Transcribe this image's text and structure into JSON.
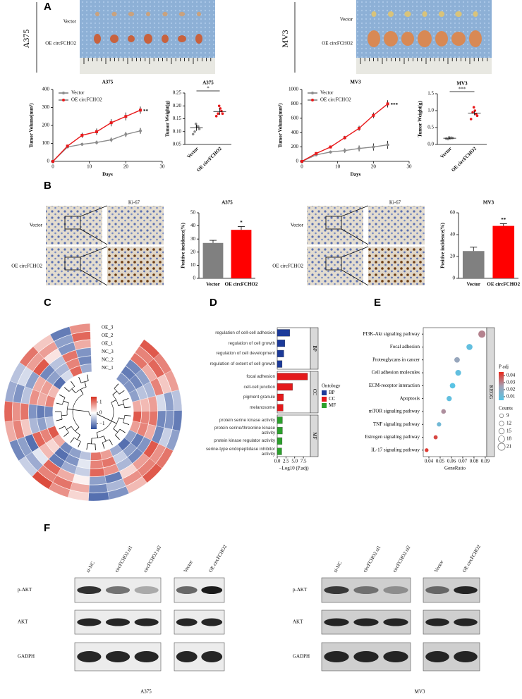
{
  "panel_labels": [
    "A",
    "B",
    "C",
    "D",
    "E",
    "F"
  ],
  "tumor_photos": [
    {
      "cell_line": "A375",
      "groups": [
        "Vector",
        "OE circFCHO2"
      ]
    },
    {
      "cell_line": "MV3",
      "groups": [
        "Vector",
        "OE circFCHO2"
      ]
    }
  ],
  "ihc": [
    {
      "stain": "Ki-67",
      "groups": [
        "Vector",
        "OE circFCHO2"
      ]
    },
    {
      "stain": "Ki-67",
      "groups": [
        "Vector",
        "OE circFCHO2"
      ]
    }
  ],
  "chart_data": [
    {
      "type": "line",
      "title": "A375",
      "x": [
        0,
        4,
        8,
        12,
        16,
        20,
        24
      ],
      "xlim": [
        0,
        30
      ],
      "xticks": [
        0,
        10,
        20,
        30
      ],
      "ylim": [
        0,
        400
      ],
      "yticks": [
        0,
        100,
        200,
        300,
        400
      ],
      "x_label": "Days",
      "y_label": "Tumor Volume(mm³)",
      "series": [
        {
          "name": "Vector",
          "color": "#8c8c8c",
          "values": [
            0,
            80,
            95,
            105,
            120,
            150,
            170
          ],
          "errors": [
            0,
            6,
            8,
            10,
            12,
            14,
            16
          ]
        },
        {
          "name": "OE circFCHO2",
          "color": "#e8191b",
          "values": [
            0,
            85,
            145,
            165,
            215,
            250,
            285
          ],
          "errors": [
            0,
            8,
            14,
            18,
            20,
            22,
            20
          ]
        }
      ],
      "annotation": "**"
    },
    {
      "type": "dotplot",
      "title": "A375",
      "categories": [
        "Vector",
        "OE circFCHO2"
      ],
      "colors": [
        "#8c8c8c",
        "#e8191b"
      ],
      "points": [
        [
          0.09,
          0.11,
          0.12,
          0.12,
          0.13,
          0.1
        ],
        [
          0.16,
          0.17,
          0.18,
          0.19,
          0.2,
          0.17
        ]
      ],
      "means": [
        0.115,
        0.178
      ],
      "errors": [
        0.012,
        0.013
      ],
      "ylim": [
        0.05,
        0.25
      ],
      "yticks": [
        0.05,
        {
          "value": 0.1,
          "label": "0.10"
        },
        0.15,
        {
          "value": 0.2,
          "label": "0.20"
        },
        0.25
      ],
      "y_label": "Tumor Weight(g)",
      "annotation": "*"
    },
    {
      "type": "line",
      "title": "MV3",
      "x": [
        0,
        4,
        8,
        12,
        16,
        20,
        24
      ],
      "xlim": [
        0,
        30
      ],
      "xticks": [
        0,
        10,
        20,
        30
      ],
      "ylim": [
        0,
        1000
      ],
      "yticks": [
        0,
        200,
        400,
        600,
        800,
        1000
      ],
      "x_label": "Days",
      "y_label": "Tumor Volume(mm³)",
      "series": [
        {
          "name": "Vector",
          "color": "#8c8c8c",
          "values": [
            0,
            90,
            130,
            150,
            180,
            200,
            230
          ],
          "errors": [
            0,
            10,
            20,
            30,
            40,
            50,
            55
          ]
        },
        {
          "name": "OE circFCHO2",
          "color": "#e8191b",
          "values": [
            0,
            110,
            200,
            330,
            460,
            640,
            800
          ],
          "errors": [
            0,
            15,
            20,
            25,
            35,
            40,
            50
          ]
        }
      ],
      "annotation": "***"
    },
    {
      "type": "dotplot",
      "title": "MV3",
      "categories": [
        "Vector",
        "OE circFCHO2"
      ],
      "colors": [
        "#8c8c8c",
        "#e8191b"
      ],
      "points": [
        [
          0.17,
          0.19,
          0.2,
          0.18,
          0.21,
          0.16
        ],
        [
          0.75,
          0.85,
          0.9,
          1.0,
          1.1,
          0.95
        ]
      ],
      "means": [
        0.185,
        0.925
      ],
      "errors": [
        0.02,
        0.06
      ],
      "ylim": [
        0,
        1.5
      ],
      "yticks": [
        {
          "value": 0,
          "label": "0.0"
        },
        0.5,
        {
          "value": 1,
          "label": "1.0"
        },
        1.5
      ],
      "y_label": "Tumor Weight(g)",
      "annotation": "***"
    },
    {
      "type": "bar",
      "title": "A375",
      "categories": [
        "Vector",
        "OE circFCHO2"
      ],
      "colors": [
        "#808080",
        "#ff0000"
      ],
      "values": [
        27,
        37
      ],
      "errors": [
        2,
        2.5
      ],
      "ylim": [
        0,
        50
      ],
      "yticks": [
        0,
        10,
        20,
        30,
        40,
        50
      ],
      "y_label": "Positive incidence(%)",
      "annotation": "*"
    },
    {
      "type": "bar",
      "title": "MV3",
      "categories": [
        "Vector",
        "OE circFCHO2"
      ],
      "colors": [
        "#808080",
        "#ff0000"
      ],
      "values": [
        25,
        48
      ],
      "errors": [
        3.5,
        2
      ],
      "ylim": [
        0,
        60
      ],
      "yticks": [
        0,
        20,
        40,
        60
      ],
      "y_label": "Positive incidence(%)",
      "annotation": "**"
    },
    {
      "type": "circular_heatmap",
      "rows": [
        "OE_3",
        "OE_2",
        "OE_1",
        "NC_3",
        "NC_2",
        "NC_1"
      ],
      "values": [
        [
          1.2,
          0.9,
          0.7,
          -0.5,
          -1.1,
          -0.8,
          1.0,
          1.2,
          0.5,
          -0.9,
          -1.2,
          0.3,
          0.8,
          1.3,
          -0.4,
          -1.0,
          0.6,
          1.1,
          -0.7,
          -0.5,
          1.0,
          0.4,
          -1.1,
          0.8
        ],
        [
          0.9,
          1.1,
          0.4,
          -0.8,
          -0.9,
          -0.4,
          0.8,
          0.9,
          0.8,
          -0.6,
          -1.0,
          0.6,
          1.0,
          0.9,
          -0.7,
          -0.8,
          0.9,
          0.8,
          -0.9,
          -0.3,
          0.7,
          0.7,
          -0.8,
          1.1
        ],
        [
          1.0,
          0.6,
          0.9,
          -0.3,
          -1.0,
          -1.0,
          1.2,
          0.7,
          0.3,
          -1.1,
          -0.8,
          0.1,
          0.6,
          1.1,
          -0.2,
          -1.2,
          0.4,
          1.0,
          -0.5,
          -0.8,
          1.2,
          0.2,
          -0.9,
          0.6
        ],
        [
          -1.0,
          -0.8,
          -0.6,
          0.7,
          1.0,
          0.6,
          -0.9,
          -1.0,
          -0.6,
          0.8,
          1.1,
          -0.4,
          -0.7,
          -1.1,
          0.5,
          1.1,
          -0.6,
          -0.9,
          0.8,
          0.6,
          -1.0,
          -0.5,
          1.0,
          -0.9
        ],
        [
          -1.1,
          -1.0,
          -0.5,
          0.5,
          0.9,
          0.9,
          -1.1,
          -0.8,
          -0.4,
          1.0,
          0.9,
          -0.2,
          -0.9,
          -1.2,
          0.3,
          0.9,
          -0.8,
          -1.1,
          0.6,
          0.7,
          -0.8,
          -0.6,
          0.9,
          -1.0
        ],
        [
          -0.9,
          -0.9,
          -0.8,
          0.6,
          1.2,
          0.7,
          -0.8,
          -1.2,
          -0.7,
          0.7,
          1.0,
          -0.5,
          -0.8,
          -1.0,
          0.6,
          1.2,
          -0.5,
          -1.0,
          0.9,
          0.5,
          -1.2,
          -0.3,
          1.1,
          -0.7
        ]
      ],
      "clim": [
        -1.5,
        1.5
      ],
      "colorbar_ticks": [
        1,
        0,
        {
          "value": -1,
          "label": "−1"
        }
      ],
      "colors": [
        "#2c4c9c",
        "#ffffff",
        "#d7301f"
      ]
    },
    {
      "type": "hbar",
      "categories": [
        "regulation of cell-cell adhesion",
        "regulation of cell growth",
        "regulation of cell development",
        "regulation of extent of cell growth",
        "focal adhesion",
        "cell-cell junction",
        "pigment granule",
        "melanosome",
        "protein serine kinase activity",
        "protein serine/threonine kinase activity",
        "protein kinase regulator activity",
        "serine-type endopeptidase inhibitor activity"
      ],
      "ontology": [
        "BP",
        "BP",
        "BP",
        "BP",
        "CC",
        "CC",
        "CC",
        "CC",
        "MF",
        "MF",
        "MF",
        "MF"
      ],
      "values": [
        3.6,
        2.2,
        1.9,
        1.4,
        8.7,
        4.4,
        1.8,
        1.7,
        1.5,
        1.5,
        1.4,
        1.3
      ],
      "groups": [
        {
          "name": "BP",
          "color": "#1c3a99"
        },
        {
          "name": "CC",
          "color": "#e41a1c"
        },
        {
          "name": "MF",
          "color": "#2ca02c"
        }
      ],
      "legend_title": "Ontology",
      "xlim": [
        0,
        9.5
      ],
      "xticks": [
        {
          "value": 0,
          "label": "0.0"
        },
        2.5,
        {
          "value": 5,
          "label": "5.0"
        },
        7.5
      ],
      "x_label": "−Log10 (P.adj)"
    },
    {
      "type": "dot",
      "categories": [
        "PI3K-Akt signaling pathway",
        "Focal adhesion",
        "Proteoglycans in cancer",
        "Cell adhesion molecules",
        "ECM-receptor interaction",
        "Apoptosis",
        "mTOR signaling pathway",
        "TNF signaling pathway",
        "Estrogen signaling pathway",
        "IL-17 signaling pathway"
      ],
      "x": [
        0.087,
        0.076,
        0.065,
        0.066,
        0.061,
        0.058,
        0.053,
        0.049,
        0.046,
        0.038
      ],
      "counts": [
        21,
        17,
        15,
        16,
        15,
        14,
        12,
        11,
        10,
        9
      ],
      "padj": [
        0.03,
        0.008,
        0.022,
        0.008,
        0.006,
        0.008,
        0.028,
        0.012,
        0.04,
        0.042
      ],
      "xlim": [
        0.035,
        0.0913
      ],
      "xticks": [
        0.04,
        0.05,
        0.06,
        0.07,
        0.08,
        0.09
      ],
      "x_label": "GeneRatio",
      "strip": "KEGG",
      "color_title": "P adj",
      "clim": [
        0.005,
        0.045
      ],
      "color_ticks": [
        0.04,
        0.03,
        0.02,
        0.01
      ],
      "colors": [
        "#56c5e6",
        "#a3a0b4",
        "#e8291c"
      ],
      "size_title": "Counts",
      "size_ticks": [
        9,
        12,
        15,
        18,
        21
      ]
    }
  ],
  "western": {
    "proteins": [
      "p-AKT",
      "AKT",
      "GADPH"
    ],
    "blots": [
      {
        "cell_line": "A375",
        "lanes": [
          "si-NC",
          "circFCHO2 si1",
          "circFCHO2 si2",
          "Vector",
          "OE circFCHO2"
        ]
      },
      {
        "cell_line": "MV3",
        "lanes": [
          "si-NC",
          "circFCHO2 si1",
          "circFCHO2 si2",
          "Vector",
          "OE circFCHO2"
        ]
      }
    ]
  }
}
